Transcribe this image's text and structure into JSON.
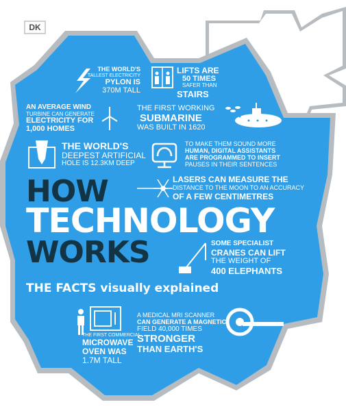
{
  "brand": {
    "logo": "DK"
  },
  "colors": {
    "blue": "#2f9ee6",
    "dark": "#123445",
    "silver": "#b7bcc1",
    "white": "#ffffff"
  },
  "cover": {
    "title_line1": "HOW",
    "title_line2": "TECHNOLOGY",
    "title_line3": "WORKS",
    "subtitle": "THE FACTS visually explained"
  },
  "facts": {
    "pylon": {
      "l1": "THE WORLD'S",
      "l2": "TALLEST ELECTRICITY",
      "l3": "PYLON IS",
      "l4": "370M TALL"
    },
    "lifts": {
      "l1": "LIFTS ARE",
      "l2": "50 TIMES",
      "l3": "SAFER THAN",
      "l4": "STAIRS"
    },
    "wind": {
      "l1": "AN AVERAGE WIND",
      "l2": "TURBINE CAN GENERATE",
      "l3": "ELECTRICITY FOR",
      "l4": "1,000 HOMES"
    },
    "submarine": {
      "l1": "THE FIRST WORKING",
      "l2": "SUBMARINE",
      "l3": "WAS BUILT IN 1620"
    },
    "hole": {
      "l1": "THE WORLD'S",
      "l2": "DEEPEST ARTIFICIAL",
      "l3": "HOLE IS 12.3KM DEEP"
    },
    "assistants": {
      "l1": "TO MAKE THEM SOUND MORE",
      "l2": "HUMAN, DIGITAL ASSISTANTS",
      "l3": "ARE PROGRAMMED TO INSERT",
      "l4": "PAUSES IN THEIR SENTENCES"
    },
    "lasers": {
      "l1": "LASERS CAN MEASURE THE",
      "l2": "DISTANCE TO THE MOON TO AN ACCURACY",
      "l3": "OF A FEW CENTIMETRES"
    },
    "cranes": {
      "l1": "SOME SPECIALIST",
      "l2": "CRANES CAN LIFT",
      "l3": "THE WEIGHT OF",
      "l4": "400 ELEPHANTS"
    },
    "microwave": {
      "l1": "THE FIRST COMMERCIAL",
      "l2": "MICROWAVE",
      "l3": "OVEN WAS",
      "l4": "1.7M TALL"
    },
    "mri": {
      "l1": "A MEDICAL MRI SCANNER",
      "l2": "CAN GENERATE A MAGNETIC",
      "l3": "FIELD 40,000 TIMES",
      "l4": "STRONGER",
      "l5": "THAN EARTH'S"
    }
  },
  "icons": [
    "lightning-icon",
    "lift-icon",
    "wind-turbine-icon",
    "submarine-icon",
    "drill-hole-icon",
    "headset-icon",
    "laser-icon",
    "crane-icon",
    "person-icon",
    "microwave-icon",
    "mri-scanner-icon"
  ]
}
